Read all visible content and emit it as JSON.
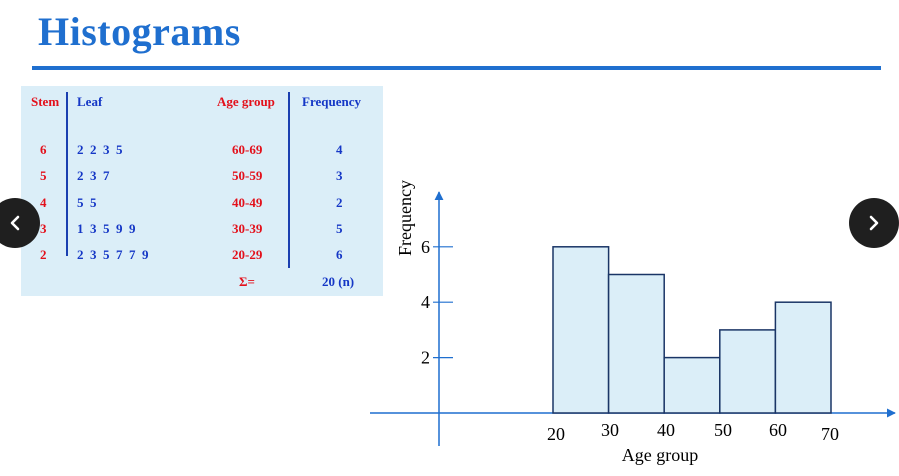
{
  "title": "Histograms",
  "stem_leaf": {
    "headers": {
      "stem": "Stem",
      "leaf": "Leaf",
      "age_group": "Age group",
      "frequency": "Frequency"
    },
    "rows": [
      {
        "stem": "6",
        "leaf": "2  2  3  5",
        "age_group": "60-69",
        "frequency": "4"
      },
      {
        "stem": "5",
        "leaf": "2  3  7",
        "age_group": "50-59",
        "frequency": "3"
      },
      {
        "stem": "4",
        "leaf": "5  5",
        "age_group": "40-49",
        "frequency": "2"
      },
      {
        "stem": "3",
        "leaf": "1  3  5  9  9",
        "age_group": "30-39",
        "frequency": "5"
      },
      {
        "stem": "2",
        "leaf": "2  3  5  7  7  9",
        "age_group": "20-29",
        "frequency": "6"
      }
    ],
    "sum_label": "Σ=",
    "sum_value": "20 (n)"
  },
  "nav": {
    "prev_icon": "chevron-left-icon",
    "next_icon": "chevron-right-icon"
  },
  "colors": {
    "title": "#1f6fcf",
    "stem": "#e3101b",
    "leaf": "#1537c6",
    "panel": "#dbeef8",
    "bar_fill": "#dbeef8",
    "axis": "#1f6fcf"
  },
  "chart_data": {
    "type": "bar",
    "bins": [
      [
        20,
        30
      ],
      [
        30,
        40
      ],
      [
        40,
        50
      ],
      [
        50,
        60
      ],
      [
        60,
        70
      ]
    ],
    "values": [
      6,
      5,
      2,
      3,
      4
    ],
    "x_ticks": [
      "20",
      "30",
      "40",
      "50",
      "60",
      "70"
    ],
    "y_ticks": [
      "2",
      "4",
      "6"
    ],
    "xlabel": "Age group",
    "ylabel": "Frequency",
    "xlim": [
      20,
      70
    ],
    "ylim": [
      0,
      6
    ],
    "grid": false
  }
}
